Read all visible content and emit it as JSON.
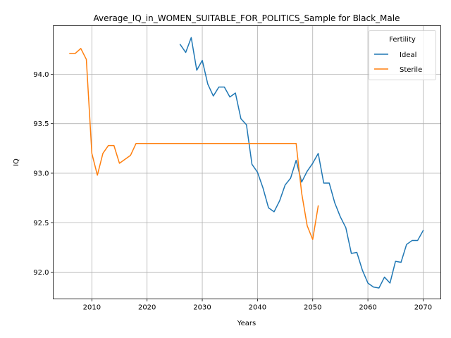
{
  "chart_data": {
    "type": "line",
    "title": "Average_IQ_in_WOMEN_SUITABLE_FOR_POLITICS_Sample for Black_Male",
    "xlabel": "Years",
    "ylabel": "IQ",
    "xlim": [
      2003,
      2073.2
    ],
    "ylim": [
      91.73,
      94.49
    ],
    "xticks": [
      2010,
      2020,
      2030,
      2040,
      2050,
      2060,
      2070
    ],
    "yticks": [
      92.0,
      92.5,
      93.0,
      93.5,
      94.0
    ],
    "xtick_labels": [
      "2010",
      "2020",
      "2030",
      "2040",
      "2050",
      "2060",
      "2070"
    ],
    "ytick_labels": [
      "92.0",
      "92.5",
      "93.0",
      "93.5",
      "94.0"
    ],
    "grid": true,
    "legend": {
      "title": "Fertility",
      "placement": "top-right"
    },
    "series": [
      {
        "name": "Ideal",
        "color": "#1f77b4",
        "x": [
          2026,
          2027,
          2028,
          2029,
          2030,
          2031,
          2032,
          2033,
          2034,
          2035,
          2036,
          2037,
          2038,
          2039,
          2040,
          2041,
          2042,
          2043,
          2044,
          2045,
          2046,
          2047,
          2048,
          2049,
          2050,
          2051,
          2052,
          2053,
          2054,
          2055,
          2056,
          2057,
          2058,
          2059,
          2060,
          2061,
          2062,
          2063,
          2064,
          2065,
          2066,
          2067,
          2068,
          2069,
          2070
        ],
        "y": [
          94.3,
          94.22,
          94.37,
          94.04,
          94.14,
          93.9,
          93.78,
          93.87,
          93.87,
          93.77,
          93.81,
          93.55,
          93.49,
          93.09,
          93.01,
          92.85,
          92.65,
          92.61,
          92.72,
          92.88,
          92.95,
          93.13,
          92.91,
          93.02,
          93.1,
          93.2,
          92.9,
          92.9,
          92.7,
          92.56,
          92.45,
          92.19,
          92.2,
          92.02,
          91.89,
          91.85,
          91.84,
          91.95,
          91.89,
          92.11,
          92.1,
          92.28,
          92.32,
          92.32,
          92.42
        ]
      },
      {
        "name": "Sterile",
        "color": "#ff7f0e",
        "x": [
          2006,
          2007,
          2008,
          2009,
          2010,
          2011,
          2012,
          2013,
          2014,
          2015,
          2016,
          2017,
          2018,
          2019,
          2020,
          2021,
          2022,
          2023,
          2024,
          2025,
          2026,
          2027,
          2028,
          2029,
          2030,
          2031,
          2032,
          2033,
          2034,
          2035,
          2036,
          2037,
          2038,
          2039,
          2040,
          2041,
          2042,
          2043,
          2044,
          2045,
          2046,
          2047,
          2048,
          2049,
          2050,
          2051
        ],
        "y": [
          94.21,
          94.21,
          94.26,
          94.15,
          93.2,
          92.98,
          93.2,
          93.28,
          93.28,
          93.1,
          93.14,
          93.18,
          93.3,
          93.3,
          93.3,
          93.3,
          93.3,
          93.3,
          93.3,
          93.3,
          93.3,
          93.3,
          93.3,
          93.3,
          93.3,
          93.3,
          93.3,
          93.3,
          93.3,
          93.3,
          93.3,
          93.3,
          93.3,
          93.3,
          93.3,
          93.3,
          93.3,
          93.3,
          93.3,
          93.3,
          93.3,
          93.3,
          92.8,
          92.47,
          92.33,
          92.67
        ]
      }
    ]
  }
}
